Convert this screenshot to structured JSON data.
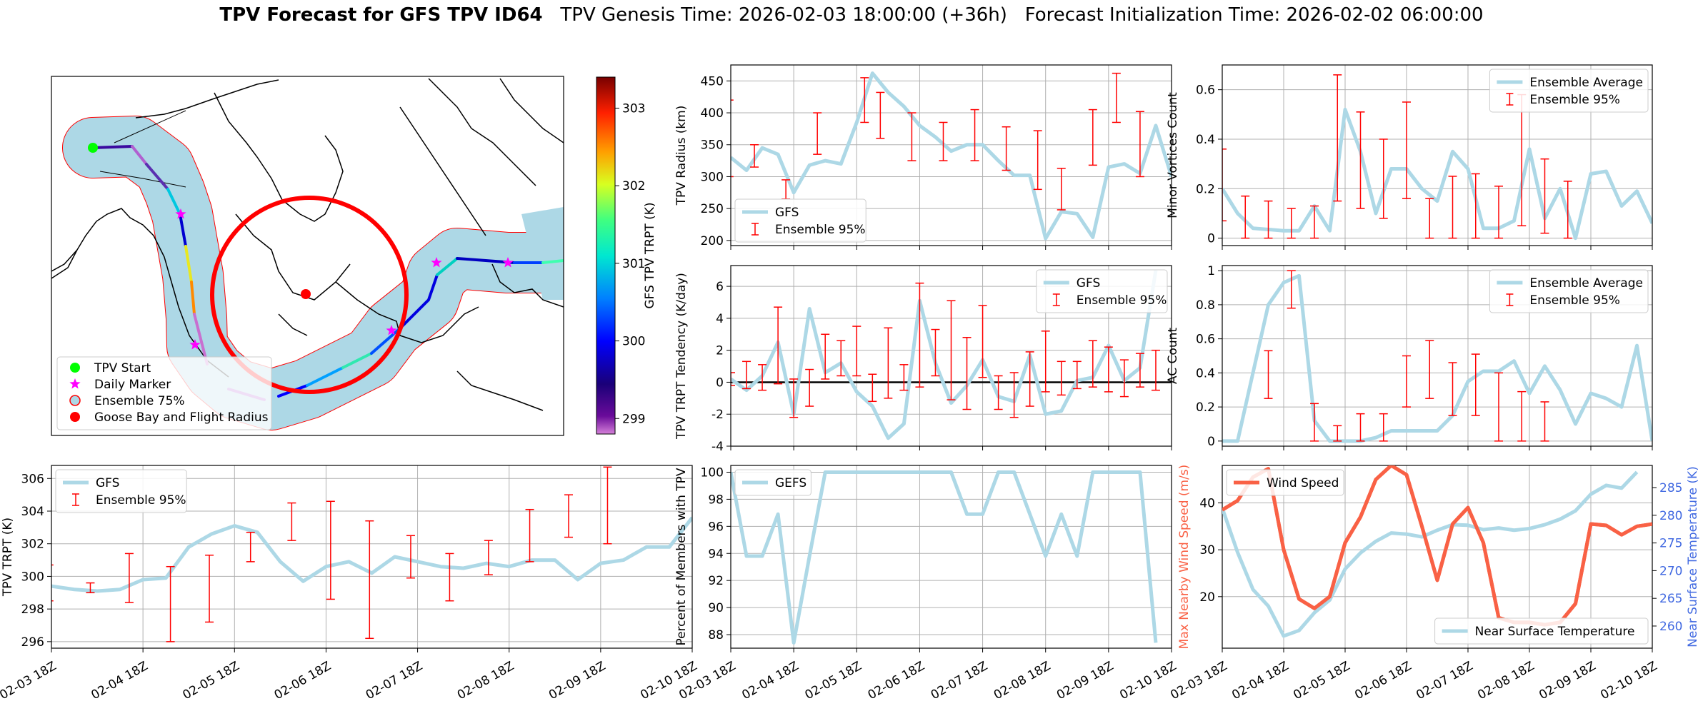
{
  "figure": {
    "title_bold": "TPV Forecast for GFS TPV ID64",
    "title_rest": "TPV Genesis Time: 2026-02-03 18:00:00 (+36h)   Forecast Initialization Time: 2026-02-02 06:00:00"
  },
  "colors": {
    "gfs_line": "#add8e6",
    "ensemble": "#ff0000",
    "wind": "#f96145",
    "temp_axis": "#4169e1",
    "wind_axis": "#f96145",
    "map_band": "#add8e6",
    "goose": "#ff0000",
    "start": "#00ff00",
    "marker": "#ff00ff"
  },
  "map": {
    "colorbar": {
      "label": "GFS TPV TRPT (K)",
      "ticks": [
        299,
        300,
        301,
        302,
        303
      ],
      "range": [
        298.8,
        303.4
      ]
    },
    "legend": [
      {
        "label": "TPV Start",
        "symbol": "dot",
        "color": "#00ff00"
      },
      {
        "label": "Daily Marker",
        "symbol": "star",
        "color": "#ff00ff"
      },
      {
        "label": "Ensemble 75%",
        "symbol": "ring",
        "color": "#add8e6"
      },
      {
        "label": "Goose Bay and Flight Radius",
        "symbol": "dot",
        "color": "#ff0000"
      }
    ]
  },
  "chart_data": [
    {
      "id": "radius",
      "type": "line",
      "title": "",
      "xlabel": "",
      "ylabel": "TPV Radius (km)",
      "ylim": [
        192,
        475
      ],
      "yticks": [
        200,
        250,
        300,
        350,
        400,
        450
      ],
      "legend": [
        "GFS",
        "Ensemble 95%"
      ],
      "legend_pos": "lower-left",
      "series": [
        {
          "name": "GFS",
          "values": [
            330,
            310,
            345,
            335,
            275,
            318,
            325,
            320,
            385,
            462,
            432,
            410,
            380,
            362,
            340,
            350,
            350,
            325,
            302,
            302,
            203,
            245,
            242,
            205,
            315,
            320,
            305,
            380,
            300
          ]
        }
      ],
      "errorbars": [
        [
          -0.1,
          300,
          420
        ],
        [
          1.5,
          315,
          350
        ],
        [
          3.5,
          265,
          295
        ],
        [
          5.5,
          335,
          400
        ],
        [
          8.5,
          385,
          455
        ],
        [
          9.5,
          360,
          432
        ],
        [
          11.5,
          325,
          400
        ],
        [
          13.5,
          325,
          385
        ],
        [
          15.5,
          325,
          405
        ],
        [
          17.5,
          310,
          378
        ],
        [
          19.5,
          280,
          372
        ],
        [
          21,
          248,
          313
        ],
        [
          23,
          318,
          405
        ],
        [
          24.5,
          385,
          462
        ],
        [
          26,
          300,
          402
        ]
      ]
    },
    {
      "id": "tendency",
      "type": "line",
      "ylabel": "TPV TRPT Tendency (K/day)",
      "ylim": [
        -4,
        7.3
      ],
      "yticks": [
        -4,
        -2,
        0,
        2,
        4,
        6
      ],
      "zero_line": true,
      "legend": [
        "GFS",
        "Ensemble 95%"
      ],
      "legend_pos": "upper-right",
      "series": [
        {
          "name": "GFS",
          "values": [
            0.2,
            -0.5,
            0.4,
            2.5,
            -2.0,
            4.6,
            0.6,
            1.2,
            -0.6,
            -1.5,
            -3.5,
            -2.6,
            5.1,
            1.2,
            -1.3,
            -0.2,
            1.4,
            -0.9,
            -1.2,
            1.7,
            -2.0,
            -1.8,
            0.1,
            0.3,
            2.3,
            0.1,
            0.9,
            7.0
          ]
        }
      ],
      "errorbars": [
        [
          0,
          -0.2,
          0.6
        ],
        [
          1,
          -0.4,
          1.3
        ],
        [
          2,
          -0.5,
          1.1
        ],
        [
          3,
          -0.1,
          4.7
        ],
        [
          4,
          -2.2,
          0.2
        ],
        [
          5,
          -1.5,
          0.8
        ],
        [
          6,
          0.2,
          3.0
        ],
        [
          7,
          0.4,
          2.6
        ],
        [
          8,
          0.4,
          3.5
        ],
        [
          9,
          -1.2,
          0.5
        ],
        [
          10,
          -1.0,
          3.4
        ],
        [
          11,
          -0.5,
          1.1
        ],
        [
          12,
          -0.3,
          6.2
        ],
        [
          13,
          0.4,
          3.3
        ],
        [
          14,
          -1.1,
          5.1
        ],
        [
          15,
          -1.7,
          2.8
        ],
        [
          16,
          0.3,
          4.8
        ],
        [
          17,
          -1.7,
          0.4
        ],
        [
          18,
          -2.2,
          0.6
        ],
        [
          19,
          -1.5,
          1.9
        ],
        [
          20,
          -0.6,
          3.2
        ],
        [
          21,
          -0.8,
          1.3
        ],
        [
          22,
          -0.4,
          1.3
        ],
        [
          23,
          -0.3,
          2.6
        ],
        [
          24,
          -0.6,
          2.2
        ],
        [
          25,
          -0.9,
          1.4
        ],
        [
          26,
          -0.3,
          1.8
        ],
        [
          27,
          -0.5,
          2.0
        ]
      ]
    },
    {
      "id": "trpt",
      "type": "line",
      "ylabel": "TPV TRPT (K)",
      "ylim": [
        295.6,
        306.8
      ],
      "yticks": [
        296,
        298,
        300,
        302,
        304,
        306
      ],
      "legend": [
        "GFS",
        "Ensemble 95%"
      ],
      "legend_pos": "upper-left",
      "xticks": [
        "02-03 18Z",
        "02-04 18Z",
        "02-05 18Z",
        "02-06 18Z",
        "02-07 18Z",
        "02-08 18Z",
        "02-09 18Z",
        "02-10 18Z"
      ],
      "series": [
        {
          "name": "GFS",
          "values": [
            299.4,
            299.2,
            299.1,
            299.2,
            299.8,
            299.9,
            301.8,
            302.6,
            303.1,
            302.7,
            300.9,
            299.7,
            300.6,
            300.9,
            300.2,
            301.2,
            300.9,
            300.6,
            300.5,
            300.8,
            300.6,
            301.0,
            301.0,
            299.8,
            300.8,
            301.0,
            301.8,
            301.8,
            303.6
          ]
        }
      ],
      "errorbars": [
        [
          -0.1,
          298.5,
          300.7
        ],
        [
          1.7,
          299.0,
          299.6
        ],
        [
          3.4,
          298.4,
          301.4
        ],
        [
          5.2,
          296.0,
          300.6
        ],
        [
          6.9,
          297.2,
          301.3
        ],
        [
          8.7,
          300.9,
          302.7
        ],
        [
          10.5,
          302.2,
          304.5
        ],
        [
          12.2,
          298.6,
          304.6
        ],
        [
          13.9,
          296.2,
          303.4
        ],
        [
          15.7,
          299.9,
          302.5
        ],
        [
          17.4,
          298.5,
          301.4
        ],
        [
          19.1,
          300.1,
          302.2
        ],
        [
          20.9,
          300.9,
          304.1
        ],
        [
          22.6,
          302.4,
          305.0
        ],
        [
          24.3,
          302.0,
          306.7
        ]
      ]
    },
    {
      "id": "members",
      "type": "line",
      "ylabel": "Percent of Members with TPV",
      "ylim": [
        87,
        100.5
      ],
      "yticks": [
        88,
        90,
        92,
        94,
        96,
        98,
        100
      ],
      "legend": [
        "GEFS"
      ],
      "legend_pos": "upper-left",
      "xticks": [
        "02-03 18Z",
        "02-04 18Z",
        "02-05 18Z",
        "02-06 18Z",
        "02-07 18Z",
        "02-08 18Z",
        "02-09 18Z",
        "02-10 18Z"
      ],
      "series": [
        {
          "name": "GEFS",
          "values": [
            100,
            93.8,
            93.8,
            96.9,
            87.4,
            93.8,
            100,
            100,
            100,
            100,
            100,
            100,
            100,
            100,
            100,
            96.9,
            96.9,
            100,
            100,
            96.9,
            93.8,
            96.9,
            93.8,
            100,
            100,
            100,
            100,
            87.4
          ]
        }
      ]
    },
    {
      "id": "minor",
      "type": "line",
      "ylabel": "Minor Vortices Count",
      "ylim": [
        -0.03,
        0.7
      ],
      "yticks": [
        0.0,
        0.2,
        0.4,
        0.6
      ],
      "legend": [
        "Ensemble Average",
        "Ensemble 95%"
      ],
      "legend_pos": "upper-right",
      "series": [
        {
          "name": "Ensemble Average",
          "values": [
            0.2,
            0.1,
            0.04,
            0.035,
            0.03,
            0.03,
            0.13,
            0.03,
            0.52,
            0.35,
            0.1,
            0.28,
            0.28,
            0.2,
            0.15,
            0.35,
            0.28,
            0.04,
            0.04,
            0.07,
            0.36,
            0.08,
            0.2,
            0.0,
            0.26,
            0.27,
            0.13,
            0.19,
            0.06
          ]
        }
      ],
      "errorbars": [
        [
          0,
          0.07,
          0.36
        ],
        [
          1.5,
          0.0,
          0.17
        ],
        [
          3,
          0.0,
          0.15
        ],
        [
          4.5,
          0.0,
          0.12
        ],
        [
          6,
          0.0,
          0.13
        ],
        [
          7.5,
          0.15,
          0.66
        ],
        [
          9,
          0.12,
          0.51
        ],
        [
          10.5,
          0.08,
          0.4
        ],
        [
          12,
          0.16,
          0.55
        ],
        [
          13.5,
          0.0,
          0.16
        ],
        [
          15,
          0.0,
          0.25
        ],
        [
          16.5,
          0.0,
          0.26
        ],
        [
          18,
          0.0,
          0.21
        ],
        [
          19.5,
          0.05,
          0.58
        ],
        [
          21,
          0.02,
          0.32
        ],
        [
          22.5,
          0.0,
          0.23
        ]
      ]
    },
    {
      "id": "ac",
      "type": "line",
      "ylabel": "AC Count",
      "ylim": [
        -0.03,
        1.03
      ],
      "yticks": [
        0.0,
        0.2,
        0.4,
        0.6,
        0.8,
        1.0
      ],
      "legend": [
        "Ensemble Average",
        "Ensemble 95%"
      ],
      "legend_pos": "upper-right",
      "series": [
        {
          "name": "Ensemble Average",
          "values": [
            0.0,
            0.0,
            0.4,
            0.8,
            0.93,
            0.97,
            0.12,
            0.0,
            0.0,
            0.0,
            0.02,
            0.06,
            0.06,
            0.06,
            0.06,
            0.15,
            0.35,
            0.41,
            0.41,
            0.47,
            0.28,
            0.44,
            0.3,
            0.1,
            0.28,
            0.25,
            0.2,
            0.56,
            0.0
          ]
        }
      ],
      "errorbars": [
        [
          3,
          0.25,
          0.53
        ],
        [
          4.5,
          0.78,
          1.0
        ],
        [
          6,
          0.0,
          0.22
        ],
        [
          7.5,
          0.0,
          0.09
        ],
        [
          9,
          0.0,
          0.16
        ],
        [
          10.5,
          0.0,
          0.16
        ],
        [
          12,
          0.2,
          0.5
        ],
        [
          13.5,
          0.25,
          0.59
        ],
        [
          15,
          0.15,
          0.46
        ],
        [
          16.5,
          0.15,
          0.51
        ],
        [
          18,
          0.0,
          0.4
        ],
        [
          19.5,
          0.0,
          0.29
        ],
        [
          21,
          0.0,
          0.23
        ]
      ]
    },
    {
      "id": "wind_temp",
      "type": "line",
      "ylabel": "Max Nearby Wind Speed (m/s)",
      "ylabel_right": "Near Surface Temperature (K)",
      "ylim": [
        9,
        48
      ],
      "yticks": [
        20,
        30,
        40
      ],
      "ylim_right": [
        256,
        289
      ],
      "yticks_right": [
        260,
        265,
        270,
        275,
        280,
        285
      ],
      "legend": [
        "Wind Speed"
      ],
      "legend_right": [
        "Near Surface Temperature"
      ],
      "xticks": [
        "02-03 18Z",
        "02-04 18Z",
        "02-05 18Z",
        "02-06 18Z",
        "02-07 18Z",
        "02-08 18Z",
        "02-09 18Z",
        "02-10 18Z"
      ],
      "series": [
        {
          "name": "Wind Speed",
          "axis": "left",
          "values": [
            38.5,
            40.5,
            45.5,
            47.3,
            30,
            19.5,
            17.5,
            20,
            31.5,
            37,
            45,
            48,
            46,
            35,
            23.5,
            35.5,
            39,
            31.5,
            15.5,
            14.5,
            14.5,
            14,
            14.5,
            18.5,
            35.5,
            35.2,
            33.2,
            35,
            35.5
          ]
        },
        {
          "name": "Near Surface Temperature",
          "axis": "right",
          "values": [
            281.3,
            273.3,
            266.6,
            263.6,
            258.2,
            259.2,
            262.4,
            264.7,
            270.3,
            273.2,
            275.3,
            276.8,
            276.6,
            276.1,
            277.3,
            278.3,
            278.2,
            277.4,
            277.7,
            277.3,
            277.6,
            278.3,
            279.3,
            280.8,
            283.8,
            285.4,
            284.9,
            287.8
          ]
        }
      ]
    }
  ]
}
